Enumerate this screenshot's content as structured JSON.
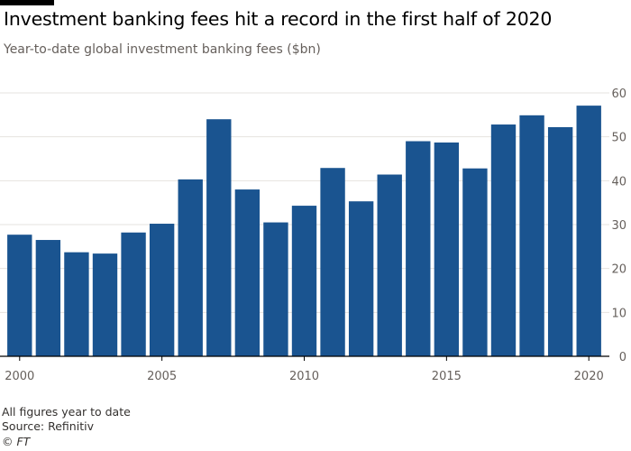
{
  "header": {
    "title": "Investment banking fees hit a record in the first half of 2020",
    "subtitle": "Year-to-date global investment banking fees ($bn)"
  },
  "footer": {
    "note": "All figures year to date",
    "source": "Source: Refinitiv",
    "copyright": "© FT"
  },
  "colors": {
    "bar": "#1a5490",
    "grid": "#e6e3df",
    "baseline": "#000000",
    "tick_label": "#66605c"
  },
  "chart_data": {
    "type": "bar",
    "title": "Investment banking fees hit a record in the first half of 2020",
    "subtitle": "Year-to-date global investment banking fees ($bn)",
    "xlabel": "",
    "ylabel": "",
    "categories": [
      2000,
      2001,
      2002,
      2003,
      2004,
      2005,
      2006,
      2007,
      2008,
      2009,
      2010,
      2011,
      2012,
      2013,
      2014,
      2015,
      2016,
      2017,
      2018,
      2019,
      2020
    ],
    "values": [
      27.7,
      26.5,
      23.7,
      23.4,
      28.2,
      30.2,
      40.3,
      54.0,
      38.0,
      30.5,
      34.3,
      42.9,
      35.3,
      41.4,
      49.0,
      48.7,
      42.8,
      52.8,
      54.9,
      52.2,
      57.1
    ],
    "ylim": [
      0,
      60
    ],
    "yticks": [
      0,
      10,
      20,
      30,
      40,
      50,
      60
    ],
    "xticks": [
      2000,
      2005,
      2010,
      2015,
      2020
    ],
    "y_axis_position": "right",
    "grid": true
  }
}
